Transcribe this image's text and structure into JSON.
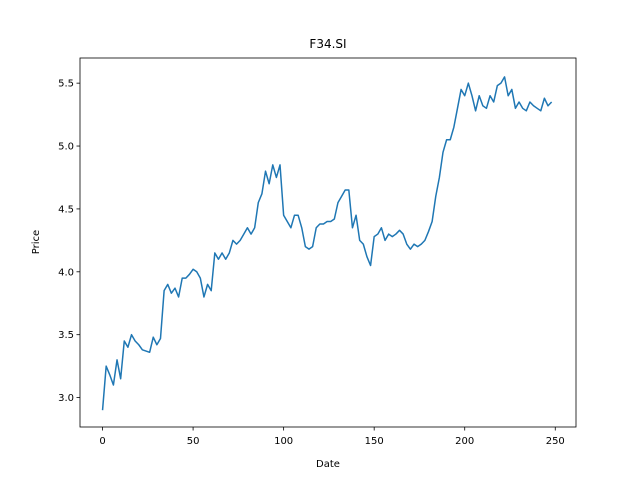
{
  "chart_data": {
    "type": "line",
    "title": "F34.SI",
    "x_label": "Date",
    "y_label": "Price",
    "x": [
      0,
      2,
      4,
      6,
      8,
      10,
      12,
      14,
      16,
      18,
      20,
      22,
      24,
      26,
      28,
      30,
      32,
      34,
      36,
      38,
      40,
      42,
      44,
      46,
      48,
      50,
      52,
      54,
      56,
      58,
      60,
      62,
      64,
      66,
      68,
      70,
      72,
      74,
      76,
      78,
      80,
      82,
      84,
      86,
      88,
      90,
      92,
      94,
      96,
      98,
      100,
      102,
      104,
      106,
      108,
      110,
      112,
      114,
      116,
      118,
      120,
      122,
      124,
      126,
      128,
      130,
      132,
      134,
      136,
      138,
      140,
      142,
      144,
      146,
      148,
      150,
      152,
      154,
      156,
      158,
      160,
      162,
      164,
      166,
      168,
      170,
      172,
      174,
      176,
      178,
      180,
      182,
      184,
      186,
      188,
      190,
      192,
      194,
      196,
      198,
      200,
      202,
      204,
      206,
      208,
      210,
      212,
      214,
      216,
      218,
      220,
      222,
      224,
      226,
      228,
      230,
      232,
      234,
      236,
      238,
      240,
      242,
      244,
      246,
      248
    ],
    "series": [
      {
        "name": "Price",
        "color": "#1f77b4",
        "values": [
          2.9,
          3.25,
          3.18,
          3.1,
          3.3,
          3.15,
          3.45,
          3.4,
          3.5,
          3.45,
          3.42,
          3.38,
          3.37,
          3.36,
          3.48,
          3.42,
          3.47,
          3.85,
          3.9,
          3.83,
          3.87,
          3.8,
          3.95,
          3.95,
          3.98,
          4.02,
          4.0,
          3.95,
          3.8,
          3.9,
          3.85,
          4.15,
          4.1,
          4.15,
          4.1,
          4.15,
          4.25,
          4.22,
          4.25,
          4.3,
          4.35,
          4.3,
          4.35,
          4.55,
          4.62,
          4.8,
          4.7,
          4.85,
          4.75,
          4.85,
          4.45,
          4.4,
          4.35,
          4.45,
          4.45,
          4.35,
          4.2,
          4.18,
          4.2,
          4.35,
          4.38,
          4.38,
          4.4,
          4.4,
          4.42,
          4.55,
          4.6,
          4.65,
          4.65,
          4.35,
          4.45,
          4.25,
          4.22,
          4.12,
          4.05,
          4.28,
          4.3,
          4.35,
          4.25,
          4.3,
          4.28,
          4.3,
          4.33,
          4.3,
          4.22,
          4.18,
          4.22,
          4.2,
          4.22,
          4.25,
          4.32,
          4.4,
          4.6,
          4.75,
          4.95,
          5.05,
          5.05,
          5.15,
          5.3,
          5.45,
          5.4,
          5.5,
          5.4,
          5.28,
          5.4,
          5.32,
          5.3,
          5.4,
          5.35,
          5.48,
          5.5,
          5.55,
          5.4,
          5.45,
          5.3,
          5.35,
          5.3,
          5.28,
          5.35,
          5.32,
          5.3,
          5.28,
          5.38,
          5.32,
          5.35
        ]
      }
    ],
    "xlim": [
      -12.45,
      261.45
    ],
    "ylim": [
      2.766,
      5.7
    ],
    "xticks": [
      0,
      50,
      100,
      150,
      200,
      250
    ],
    "yticks": [
      {
        "value": 3,
        "label": "3.0"
      },
      3.5,
      {
        "value": 4,
        "label": "4.0"
      },
      4.5,
      {
        "value": 5,
        "label": "5.0"
      },
      5.5
    ],
    "grid": false
  }
}
